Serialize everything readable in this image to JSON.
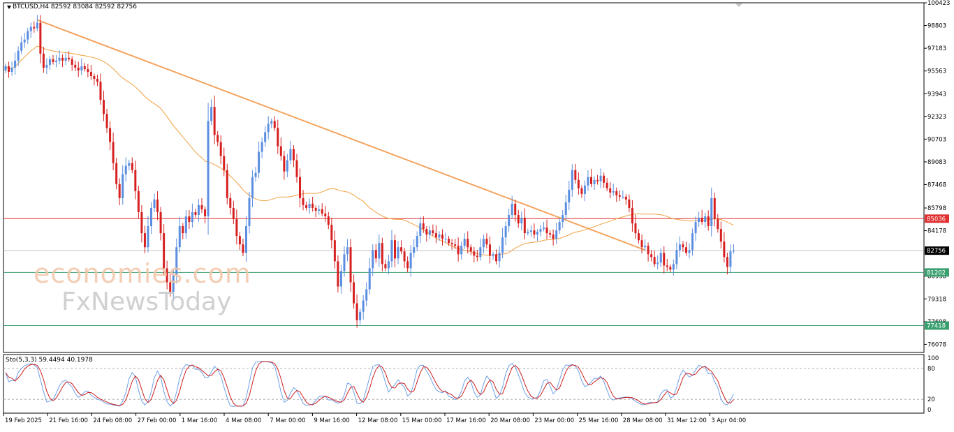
{
  "header": {
    "symbol": "BTCUSD,H4",
    "ohlc": "82592 83084 82592 82756"
  },
  "oscillator": {
    "label": "Sto(5,3,3) 59.4494 40.1978",
    "levels": [
      "100",
      "80",
      "20",
      "0"
    ]
  },
  "watermark": {
    "line1": "economies.com",
    "line2": "FxNewsToday"
  },
  "colors": {
    "bull": "#5b8ee0",
    "bear": "#d62020",
    "ma": "#f0a040",
    "trendline": "#f4a460",
    "resistance": "#e03030",
    "support": "#3aa070",
    "stoch_k": "#6fa0e8",
    "stoch_d": "#cc1f1f"
  },
  "chart_data": {
    "type": "candlestick",
    "price_axis_ticks": [
      "100423",
      "98803",
      "97183",
      "95563",
      "93943",
      "92323",
      "90703",
      "89083",
      "87468",
      "85798",
      "84178",
      "82756",
      "80938",
      "79318",
      "77698",
      "76078"
    ],
    "ylim": [
      75500,
      100423
    ],
    "time_axis_ticks": [
      "19 Feb 2025",
      "21 Feb 16:00",
      "24 Feb 08:00",
      "27 Feb 00:00",
      "1 Mar 16:00",
      "4 Mar 08:00",
      "7 Mar 00:00",
      "9 Mar 16:00",
      "12 Mar 08:00",
      "15 Mar 00:00",
      "17 Mar 16:00",
      "20 Mar 08:00",
      "23 Mar 00:00",
      "25 Mar 16:00",
      "28 Mar 08:00",
      "31 Mar 12:00",
      "3 Apr 04:00"
    ],
    "horizontal_levels": [
      {
        "value": 85036,
        "label": "85036",
        "color": "#e03030"
      },
      {
        "value": 81202,
        "label": "81202",
        "color": "#3aa070"
      },
      {
        "value": 77418,
        "label": "77418",
        "color": "#3aa070"
      }
    ],
    "current_price": {
      "value": 82756,
      "label": "82756"
    },
    "trendline": {
      "from_x": 10,
      "from_y": 99200,
      "to_x": 202,
      "to_y": 82800
    },
    "closes": [
      95900,
      95500,
      95800,
      96300,
      97000,
      97600,
      97800,
      98400,
      98700,
      98600,
      99000,
      96800,
      95800,
      96000,
      96400,
      96200,
      96300,
      96500,
      96300,
      96500,
      96400,
      96000,
      95800,
      95600,
      95900,
      95700,
      95500,
      95200,
      95000,
      94800,
      93500,
      92500,
      91500,
      90500,
      89000,
      87500,
      86500,
      88200,
      88800,
      89000,
      88500,
      87000,
      85500,
      84000,
      83000,
      84500,
      85800,
      86400,
      85500,
      84000,
      81500,
      80500,
      79800,
      81000,
      83000,
      84500,
      84000,
      85200,
      84800,
      85500,
      85300,
      86000,
      85700,
      85200,
      92000,
      93000,
      91000,
      90500,
      89500,
      88500,
      86500,
      85800,
      85000,
      83800,
      83200,
      82600,
      84500,
      86500,
      88000,
      88300,
      89800,
      90500,
      91200,
      91800,
      92000,
      91500,
      90200,
      89500,
      88400,
      89200,
      90000,
      89200,
      88000,
      86500,
      86000,
      85800,
      86100,
      85800,
      85600,
      85700,
      85400,
      85200,
      84600,
      83500,
      82000,
      80200,
      81300,
      82500,
      83000,
      80500,
      79000,
      77800,
      78400,
      79200,
      80000,
      81500,
      82800,
      82200,
      83300,
      81800,
      81500,
      82000,
      83500,
      82200,
      83000,
      82700,
      82000,
      81500,
      82600,
      83000,
      83800,
      84700,
      84300,
      83900,
      84200,
      84000,
      83700,
      83900,
      83600,
      83600,
      83300,
      83200,
      83100,
      82500,
      83100,
      83600,
      83000,
      82700,
      82400,
      82300,
      83000,
      83600,
      83200,
      82400,
      82500,
      82000,
      82600,
      83700,
      84500,
      85300,
      86100,
      85300,
      84700,
      85100,
      84000,
      84100,
      84200,
      83900,
      84100,
      84300,
      84400,
      84000,
      83900,
      83600,
      84200,
      84800,
      85300,
      86200,
      87100,
      88500,
      87800,
      87200,
      86800,
      87400,
      88000,
      87500,
      87800,
      87700,
      88100,
      87600,
      87200,
      86900,
      87000,
      86700,
      86600,
      86600,
      86400,
      85800,
      84700,
      84000,
      83500,
      83000,
      83100,
      82500,
      82300,
      81800,
      81900,
      82600,
      81700,
      81600,
      81400,
      81800,
      82800,
      83200,
      83000,
      82600,
      82800,
      84000,
      84800,
      85100,
      84800,
      85200,
      84500,
      86500,
      85000,
      84300,
      83400,
      82300,
      81600,
      82700,
      82756
    ],
    "moving_average": {
      "period": 50,
      "color": "#f0a040"
    },
    "stochastic": {
      "k_period": 5,
      "d_period": 3,
      "slowing": 3,
      "k": 59.4494,
      "d": 40.1978,
      "ylim": [
        0,
        100
      ],
      "levels": [
        80,
        20
      ]
    }
  }
}
